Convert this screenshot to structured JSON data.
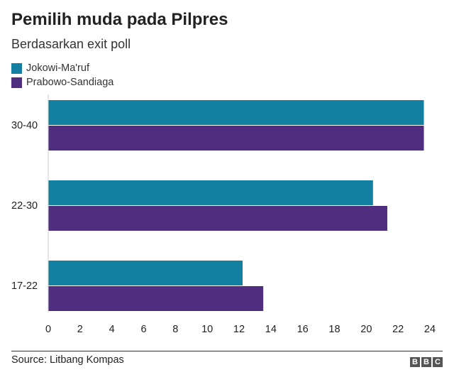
{
  "header": {
    "title": "Pemilih muda pada Pilpres",
    "subtitle": "Berdasarkan exit poll"
  },
  "footer": {
    "source": "Source: Litbang Kompas",
    "logo_letters": [
      "B",
      "B",
      "C"
    ]
  },
  "colors": {
    "jokowi": "#1380A1",
    "prabowo": "#4F2D7F",
    "axis": "#cccccc",
    "text": "#222222"
  },
  "chart_data": {
    "type": "bar",
    "orientation": "horizontal",
    "title": "Pemilih muda pada Pilpres",
    "subtitle": "Berdasarkan exit poll",
    "categories": [
      "30-40",
      "22-30",
      "17-22"
    ],
    "series": [
      {
        "name": "Jokowi-Ma'ruf",
        "values": [
          23.6,
          20.4,
          12.2
        ]
      },
      {
        "name": "Prabowo-Sandiaga",
        "values": [
          23.6,
          21.3,
          13.5
        ]
      }
    ],
    "xlim": [
      0,
      24
    ],
    "xticks": [
      "0",
      "2",
      "4",
      "6",
      "8",
      "10",
      "12",
      "14",
      "16",
      "18",
      "20",
      "22",
      "24"
    ],
    "xlabel": "",
    "ylabel": "",
    "legend": "top-left",
    "grid": false
  }
}
